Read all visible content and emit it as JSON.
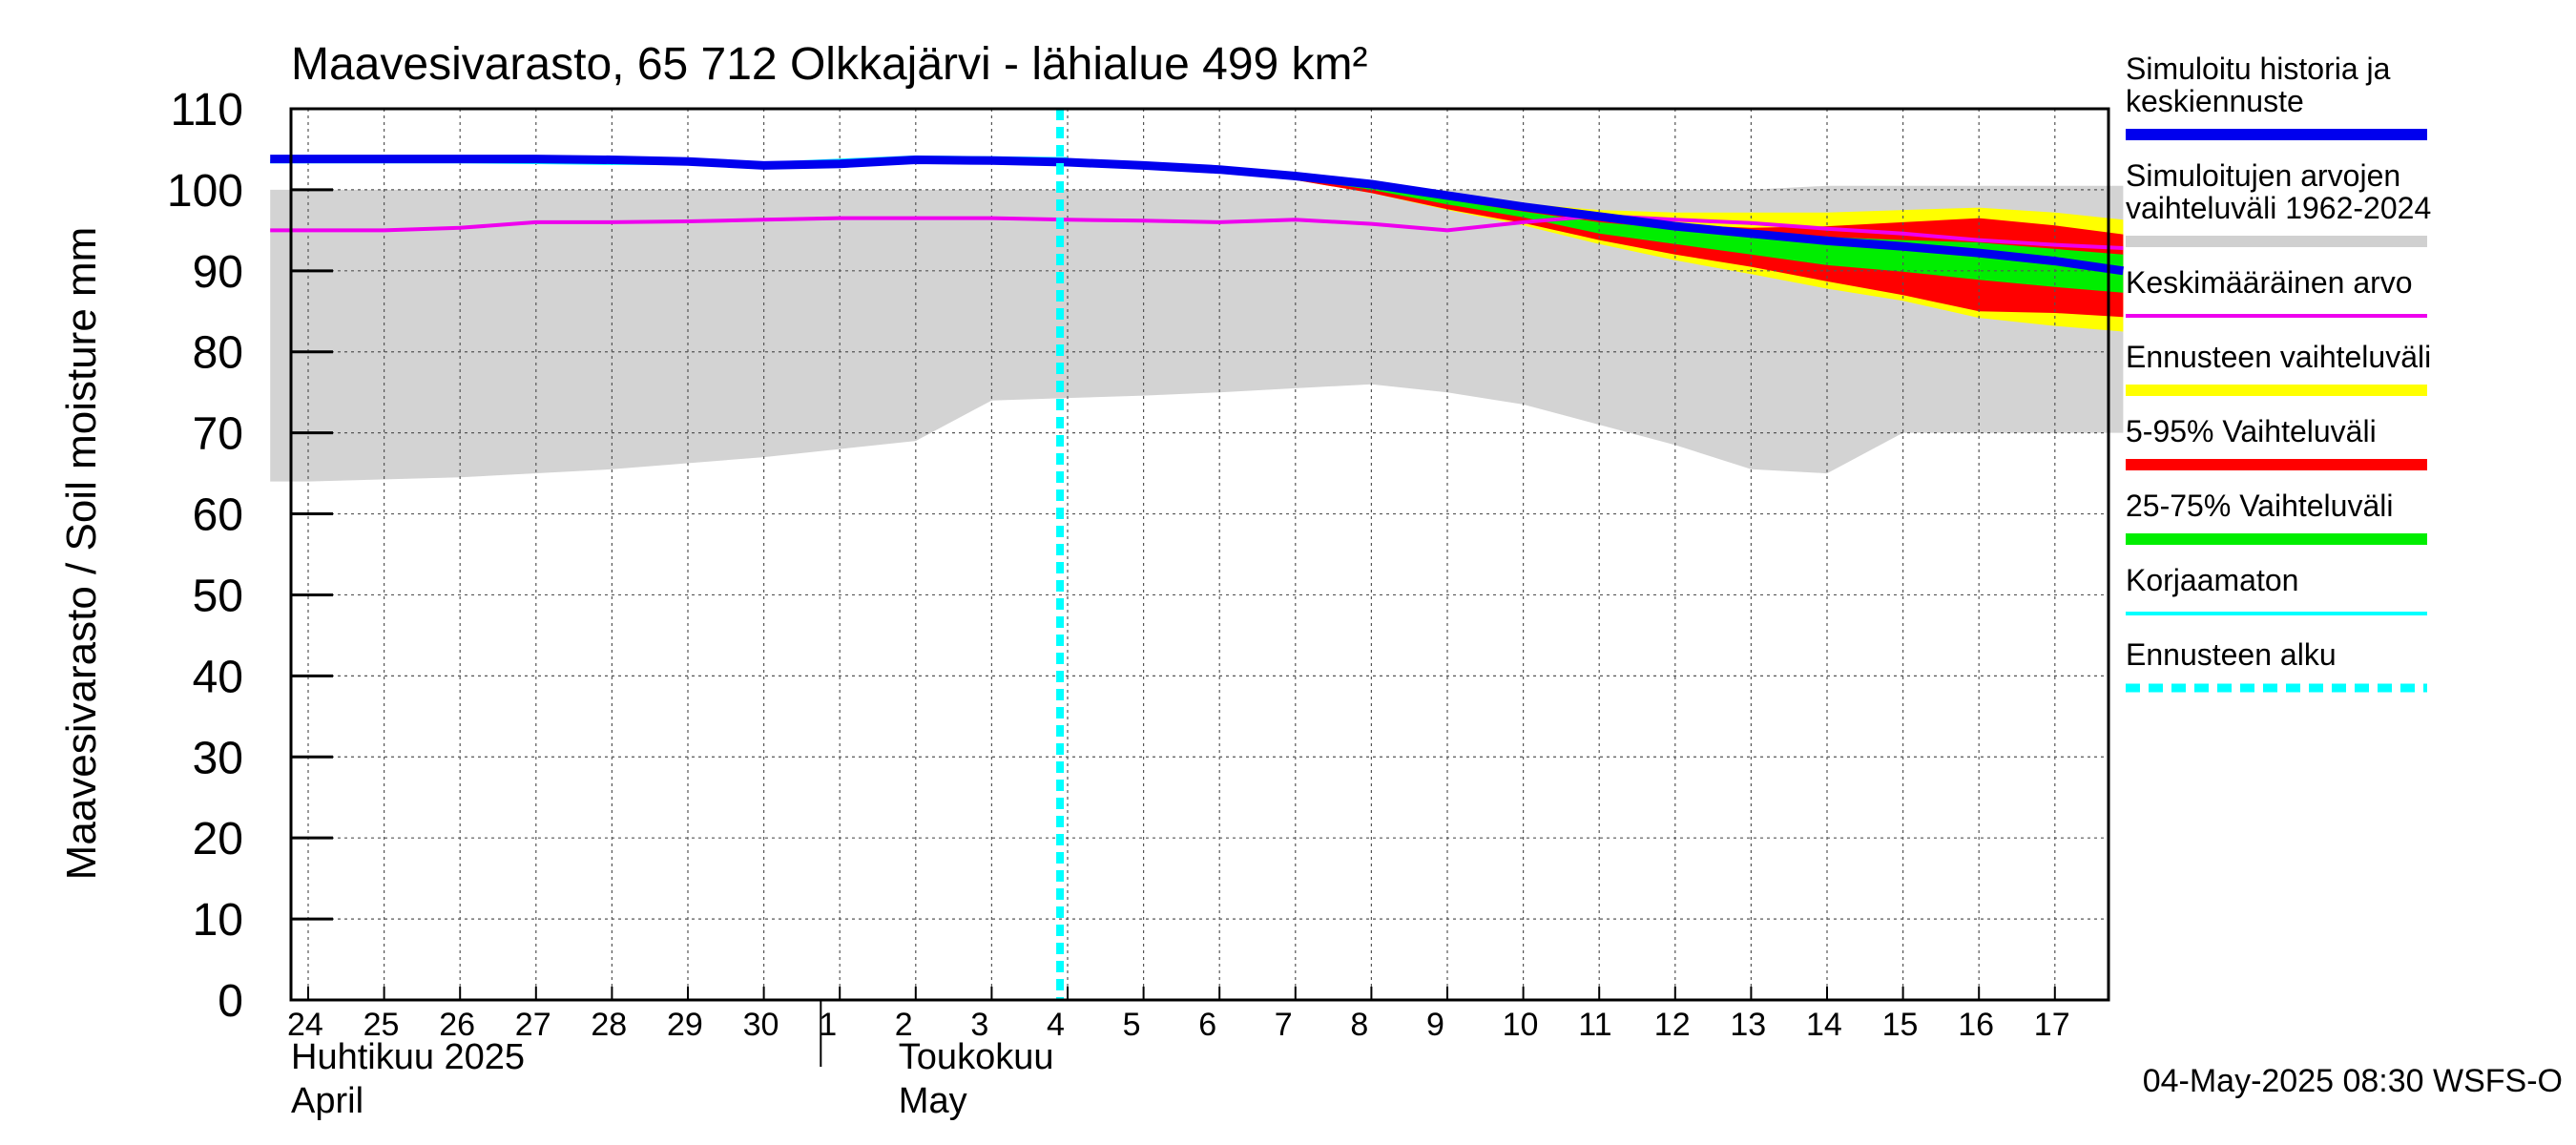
{
  "chart_data": {
    "type": "line",
    "title": "Maavesivarasto, 65 712 Olkkajärvi - lähialue 499 km²",
    "ylabel": "Maavesivarasto / Soil moisture   mm",
    "ylim": [
      0,
      110
    ],
    "yticks": [
      0,
      10,
      20,
      30,
      40,
      50,
      60,
      70,
      80,
      90,
      100,
      110
    ],
    "x_day_labels": [
      "24",
      "25",
      "26",
      "27",
      "28",
      "29",
      "30",
      "1",
      "2",
      "3",
      "4",
      "5",
      "6",
      "7",
      "8",
      "9",
      "10",
      "11",
      "12",
      "13",
      "14",
      "15",
      "16",
      "17"
    ],
    "month_labels": [
      {
        "fi": "Huhtikuu  2025",
        "en": "April"
      },
      {
        "fi": "Toukokuu",
        "en": "May"
      }
    ],
    "forecast_start_day_index": 10,
    "footer": "04-May-2025 08:30 WSFS-O",
    "grid": true,
    "legend_position": "right",
    "legend": [
      {
        "label": "Simuloitu historia ja\nkeskiennuste",
        "color": "#0000ee",
        "style": "thick"
      },
      {
        "label": "Simuloitujen arvojen\nvaihteluväli 1962-2024",
        "color": "#d0d0d0",
        "style": "thick"
      },
      {
        "label": "Keskimääräinen arvo",
        "color": "#ee00ee",
        "style": "thin"
      },
      {
        "label": "Ennusteen vaihteluväli",
        "color": "#ffff00",
        "style": "thick"
      },
      {
        "label": "5-95% Vaihteluväli",
        "color": "#ff0000",
        "style": "thick"
      },
      {
        "label": "25-75% Vaihteluväli",
        "color": "#00ee00",
        "style": "thick"
      },
      {
        "label": "Korjaamaton",
        "color": "#00ffff",
        "style": "thin"
      },
      {
        "label": "Ennusteen alku",
        "color": "#00ffff",
        "style": "dashed"
      }
    ],
    "series": [
      {
        "name": "Simuloitujen arvojen vaihteluväli 1962-2024",
        "kind": "band",
        "color": "#d3d3d3",
        "x": [
          -0.5,
          0,
          2,
          4,
          6,
          7,
          8,
          9,
          10,
          11,
          12,
          13,
          14,
          15,
          16,
          17,
          18,
          19,
          20,
          21,
          22,
          23,
          23.9
        ],
        "low": [
          64,
          64,
          64.5,
          65.5,
          67,
          68,
          69,
          74,
          74.3,
          74.6,
          75,
          75.5,
          76,
          75,
          73.5,
          71,
          68.5,
          65.5,
          65,
          70,
          70,
          70,
          70
        ],
        "high": [
          100,
          100,
          100,
          100,
          100,
          100,
          100,
          100,
          100,
          100,
          100,
          100,
          100,
          100,
          100,
          100,
          100,
          100,
          100.5,
          100.5,
          100.5,
          100.5,
          100.5
        ]
      },
      {
        "name": "Ennusteen vaihteluväli",
        "kind": "band",
        "color": "#ffff00",
        "x": [
          10,
          11,
          12,
          13,
          14,
          15,
          16,
          17,
          18,
          19,
          20,
          21,
          22,
          23,
          23.9
        ],
        "low": [
          103.8,
          103.2,
          102.3,
          101.2,
          99.6,
          97.5,
          95.6,
          93.3,
          91.3,
          89.6,
          87.8,
          86.3,
          84.2,
          83.2,
          82.5
        ],
        "high": [
          103.8,
          103.3,
          102.6,
          101.8,
          100.6,
          99.3,
          98.3,
          97.5,
          97.2,
          97.2,
          97.2,
          97.5,
          97.8,
          97.2,
          96.3
        ]
      },
      {
        "name": "5-95% Vaihteluväli",
        "kind": "band",
        "color": "#ff0000",
        "x": [
          10,
          11,
          12,
          13,
          14,
          15,
          16,
          17,
          18,
          19,
          20,
          21,
          22,
          23,
          23.9
        ],
        "low": [
          103.8,
          103.2,
          102.3,
          101.2,
          99.6,
          97.6,
          95.9,
          93.8,
          92,
          90.5,
          88.7,
          87,
          85,
          84.8,
          84.3
        ],
        "high": [
          103.8,
          103.3,
          102.5,
          101.5,
          100.4,
          99,
          97.6,
          96.5,
          95.7,
          95.3,
          95.5,
          96,
          96.5,
          95.6,
          94.5
        ]
      },
      {
        "name": "25-75% Vaihteluväli",
        "kind": "band",
        "color": "#00ee00",
        "x": [
          10,
          11,
          12,
          13,
          14,
          15,
          16,
          17,
          18,
          19,
          20,
          21,
          22,
          23,
          23.9
        ],
        "low": [
          103.8,
          103.2,
          102.4,
          101.4,
          100,
          98.2,
          96.6,
          94.6,
          93.3,
          92,
          90.7,
          89.9,
          88.9,
          88,
          87.3
        ],
        "high": [
          103.8,
          103.3,
          102.5,
          101.5,
          100.3,
          98.8,
          97.3,
          96,
          95.2,
          94.6,
          94.2,
          93.8,
          93.5,
          92.7,
          92
        ]
      },
      {
        "name": "Keskimääräinen arvo",
        "kind": "line",
        "color": "#ee00ee",
        "x": [
          -0.5,
          0,
          1,
          2,
          3,
          4,
          5,
          6,
          7,
          8,
          9,
          10,
          11,
          12,
          13,
          14,
          15,
          16,
          17,
          18,
          19,
          20,
          21,
          22,
          23,
          23.9
        ],
        "y": [
          95,
          95,
          95,
          95.3,
          96,
          96,
          96.1,
          96.3,
          96.5,
          96.5,
          96.5,
          96.3,
          96.2,
          96,
          96.3,
          95.8,
          95,
          96,
          96.8,
          96.3,
          95.9,
          95.2,
          94.6,
          93.8,
          93.2,
          92.8
        ]
      },
      {
        "name": "Korjaamaton",
        "kind": "line",
        "color": "#00ffff",
        "x": [
          -0.5,
          0,
          1,
          2,
          3,
          4,
          5,
          6,
          7,
          8,
          9,
          10
        ],
        "y": [
          103.5,
          103.5,
          103.5,
          103.5,
          103.4,
          103.3,
          103.3,
          103.2,
          103.6,
          104,
          103.9,
          103.8
        ]
      },
      {
        "name": "Simuloitu historia ja keskiennuste",
        "kind": "line",
        "color": "#0000ee",
        "x": [
          -0.5,
          0,
          1,
          2,
          3,
          4,
          5,
          6,
          7,
          8,
          9,
          10,
          11,
          12,
          13,
          14,
          15,
          16,
          17,
          18,
          19,
          20,
          21,
          22,
          23,
          23.9
        ],
        "y": [
          103.8,
          103.8,
          103.8,
          103.8,
          103.8,
          103.7,
          103.5,
          103,
          103.2,
          103.7,
          103.6,
          103.4,
          103,
          102.5,
          101.7,
          100.7,
          99.3,
          97.9,
          96.7,
          95.5,
          94.6,
          93.7,
          93,
          92.2,
          91.2,
          90
        ]
      }
    ]
  }
}
